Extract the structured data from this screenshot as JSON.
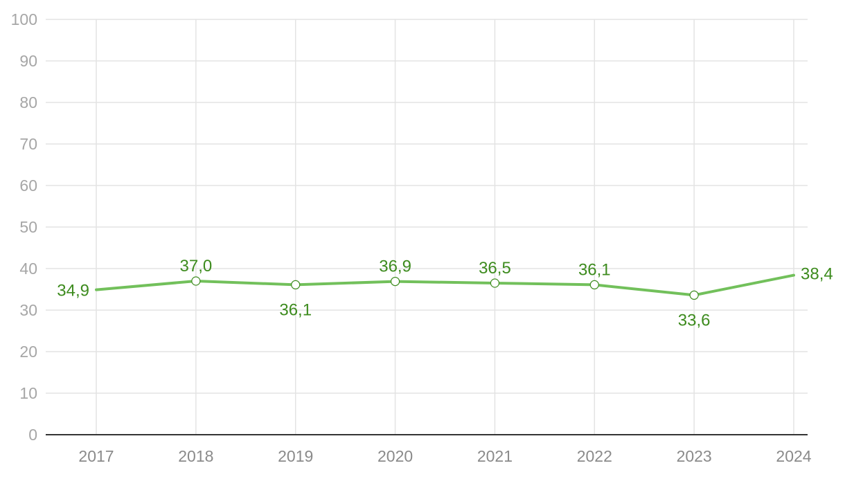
{
  "chart_data": {
    "type": "line",
    "title": "",
    "xlabel": "",
    "ylabel": "",
    "x": [
      "2017",
      "2018",
      "2019",
      "2020",
      "2021",
      "2022",
      "2023",
      "2024"
    ],
    "series": [
      {
        "values": [
          34.9,
          37.0,
          36.1,
          36.9,
          36.5,
          36.1,
          33.6,
          38.4
        ],
        "data_labels": [
          "34,9",
          "37,0",
          "36,1",
          "36,9",
          "36,5",
          "36,1",
          "33,6",
          "38,4"
        ],
        "line_color": "#72c05b",
        "label_color": "#3d8b1e",
        "marker": "hollow-circle"
      }
    ],
    "ylim": [
      0,
      100
    ],
    "y_ticks": [
      0,
      10,
      20,
      30,
      40,
      50,
      60,
      70,
      80,
      90,
      100
    ],
    "grid": true,
    "legend": "none"
  }
}
